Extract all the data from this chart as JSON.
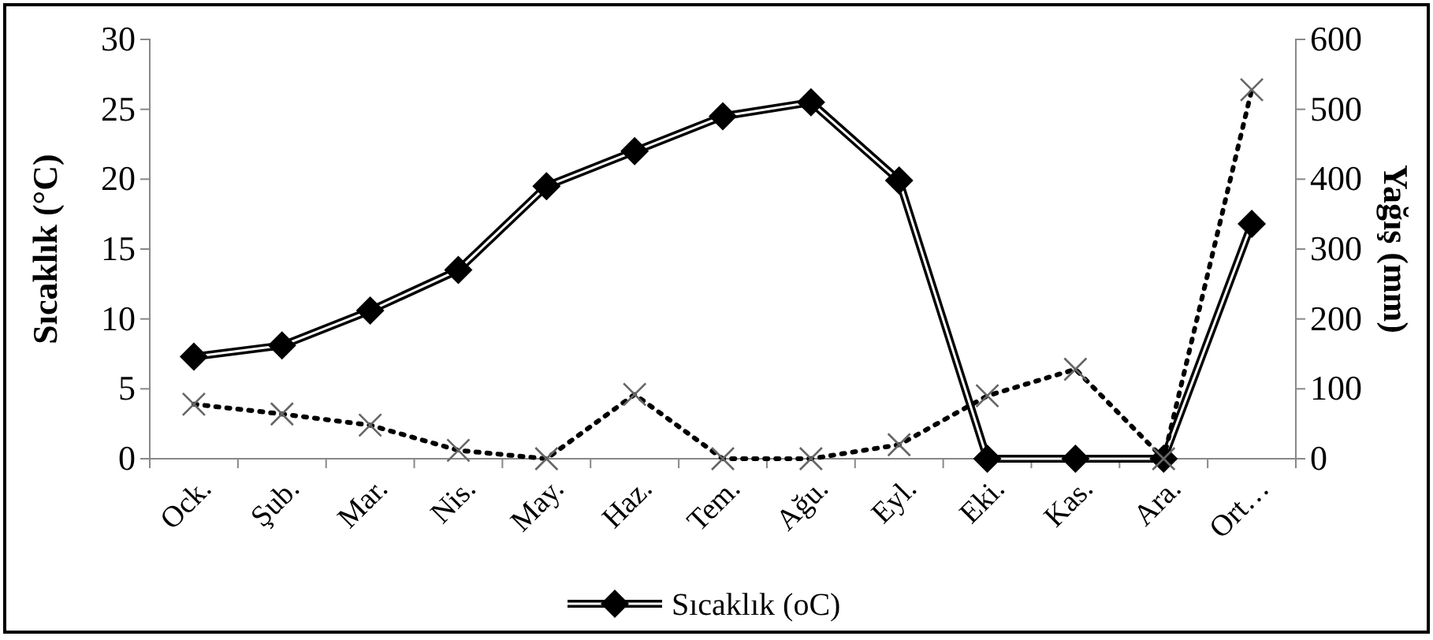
{
  "chart_data": {
    "type": "line",
    "ylabel": "Sıcaklık (°C)",
    "y2label": "Yağış (mm)",
    "categories": [
      "Ock.",
      "Şub.",
      "Mar.",
      "Nis.",
      "May.",
      "Haz.",
      "Tem.",
      "Ağu.",
      "Eyl.",
      "Eki.",
      "Kas.",
      "Ara.",
      "Ort…"
    ],
    "series": [
      {
        "name": "Sıcaklık (oC)",
        "color": "#000000",
        "marker": "diamond",
        "line_style": "solid",
        "values": [
          7.3,
          8.1,
          10.6,
          13.5,
          19.5,
          22.0,
          24.5,
          25.5,
          19.9,
          0,
          0,
          0,
          16.8
        ]
      },
      {
        "color": "#000000",
        "marker": "cross",
        "line_style": "dotted",
        "axis": "y2",
        "values": [
          78,
          64,
          48,
          12,
          0,
          92,
          0,
          0,
          20,
          90,
          128,
          0,
          528
        ]
      }
    ],
    "ylim": [
      0,
      30
    ],
    "yticks": [
      0,
      5,
      10,
      15,
      20,
      25,
      30
    ],
    "y2lim": [
      0,
      600
    ],
    "y2ticks": [
      0,
      100,
      200,
      300,
      400,
      500,
      600
    ],
    "grid": false,
    "legend": "bottom"
  }
}
